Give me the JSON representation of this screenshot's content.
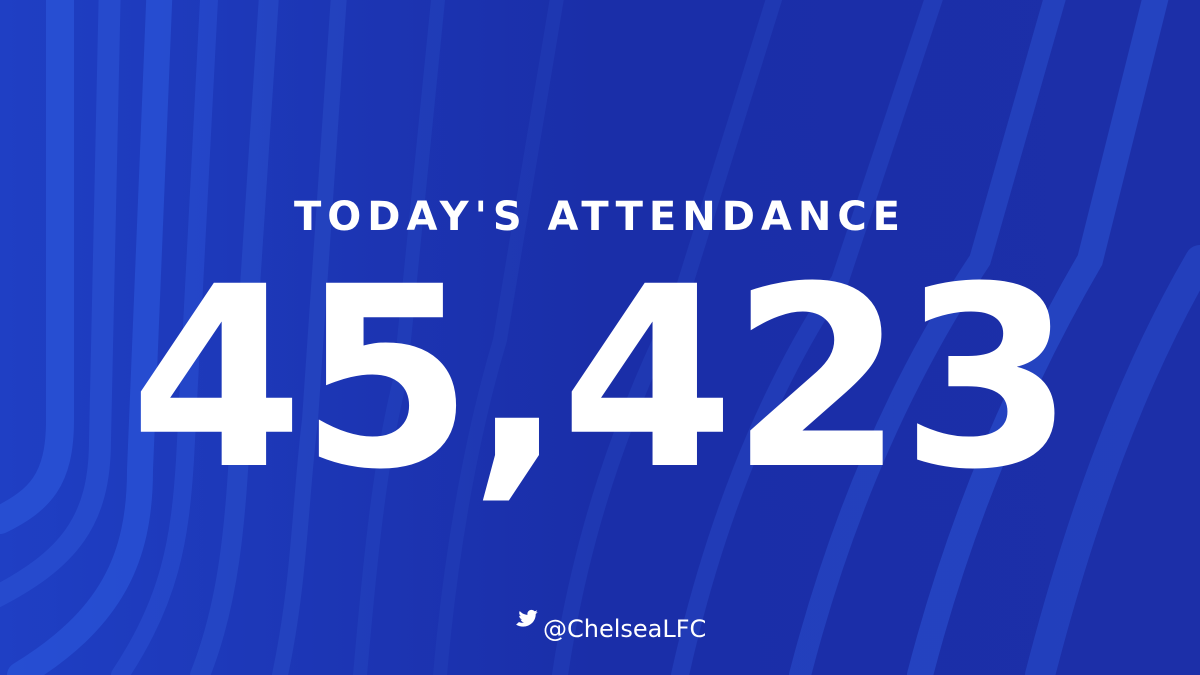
{
  "title": "TODAY'S ATTENDANCE",
  "attendance": "45,423",
  "handle": "@ChelseaLFC"
}
